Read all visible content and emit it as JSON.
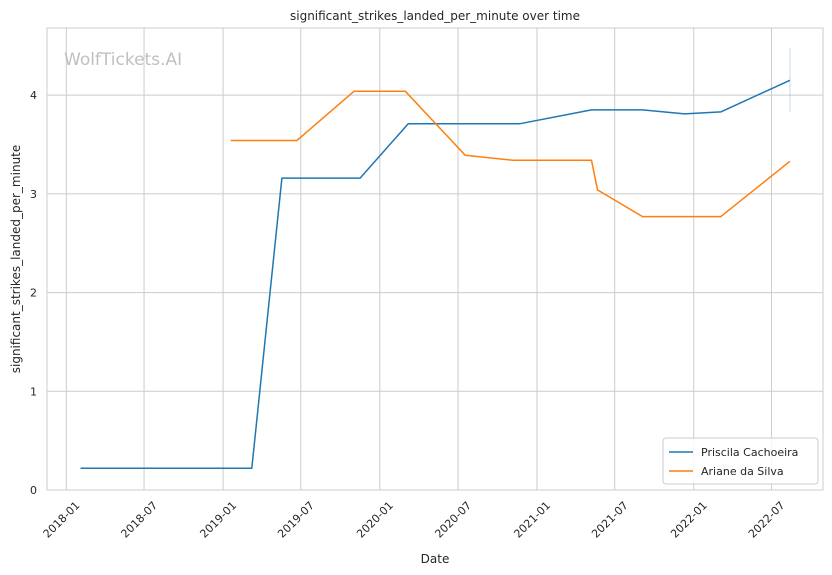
{
  "watermark": "WolfTickets.AI",
  "chart_data": {
    "type": "line",
    "title": "significant_strikes_landed_per_minute over time",
    "xlabel": "Date",
    "ylabel": "significant_strikes_landed_per_minute",
    "x_ticks": [
      "2018-01",
      "2018-07",
      "2019-01",
      "2019-07",
      "2020-01",
      "2020-07",
      "2021-01",
      "2021-07",
      "2022-01",
      "2022-07"
    ],
    "y_ticks": [
      0,
      1,
      2,
      3,
      4
    ],
    "ylim": [
      0,
      4.68
    ],
    "xlim": [
      "2017-11-17",
      "2022-10-29"
    ],
    "grid": true,
    "legend_position": "lower-right",
    "series": [
      {
        "name": "Priscila Cachoeira",
        "color": "#1f77b4",
        "points": [
          {
            "x": "2018-02-03",
            "y": 0.22
          },
          {
            "x": "2019-03-09",
            "y": 0.22
          },
          {
            "x": "2019-05-18",
            "y": 3.16
          },
          {
            "x": "2019-11-16",
            "y": 3.16
          },
          {
            "x": "2020-03-07",
            "y": 3.71
          },
          {
            "x": "2020-11-21",
            "y": 3.71
          },
          {
            "x": "2021-05-08",
            "y": 3.85
          },
          {
            "x": "2021-09-04",
            "y": 3.85
          },
          {
            "x": "2021-12-11",
            "y": 3.81
          },
          {
            "x": "2022-03-05",
            "y": 3.83
          },
          {
            "x": "2022-08-13",
            "y": 4.15
          }
        ]
      },
      {
        "name": "Ariane da Silva",
        "color": "#ff7f0e",
        "points": [
          {
            "x": "2019-01-19",
            "y": 3.54
          },
          {
            "x": "2019-06-22",
            "y": 3.54
          },
          {
            "x": "2019-11-02",
            "y": 4.04
          },
          {
            "x": "2020-02-29",
            "y": 4.04
          },
          {
            "x": "2020-07-18",
            "y": 3.39
          },
          {
            "x": "2020-11-07",
            "y": 3.34
          },
          {
            "x": "2021-05-08",
            "y": 3.34
          },
          {
            "x": "2021-05-22",
            "y": 3.04
          },
          {
            "x": "2021-09-04",
            "y": 2.77
          },
          {
            "x": "2022-03-05",
            "y": 2.77
          },
          {
            "x": "2022-08-13",
            "y": 3.33
          }
        ]
      }
    ]
  }
}
